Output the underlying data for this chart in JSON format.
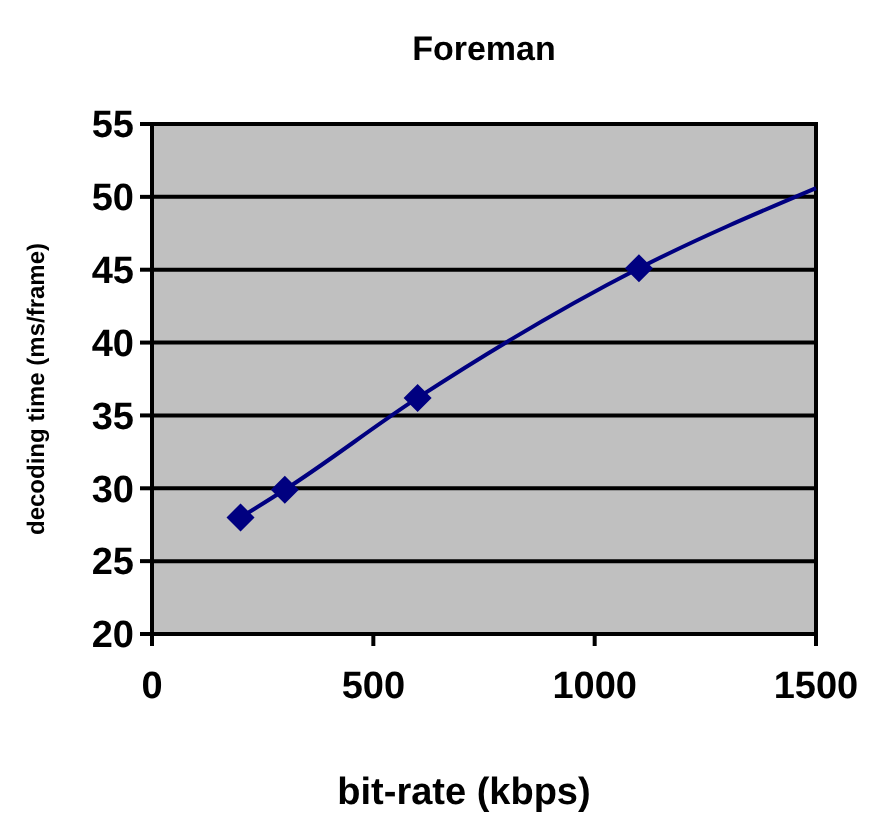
{
  "chart_data": {
    "type": "line",
    "title": "Foreman",
    "xlabel": "bit-rate (kbps)",
    "ylabel": "decoding time (ms/frame)",
    "series": [
      {
        "type": "line",
        "color": "#000080",
        "x": [
          200,
          300,
          600,
          1100,
          1500
        ],
        "values": [
          28,
          29.9,
          36.2,
          45.1,
          50.6
        ],
        "marker": "none"
      },
      {
        "type": "scatter",
        "color": "#000080",
        "x": [
          200,
          300,
          600,
          1100
        ],
        "values": [
          28,
          29.9,
          36.2,
          45.1
        ],
        "marker": "diamond"
      }
    ],
    "xlim": [
      0,
      1500
    ],
    "xticks": [
      0,
      500,
      1000,
      1500
    ],
    "ylim": [
      20,
      55
    ],
    "yticks": [
      20,
      25,
      30,
      35,
      40,
      45,
      50,
      55
    ],
    "grid": "y"
  }
}
